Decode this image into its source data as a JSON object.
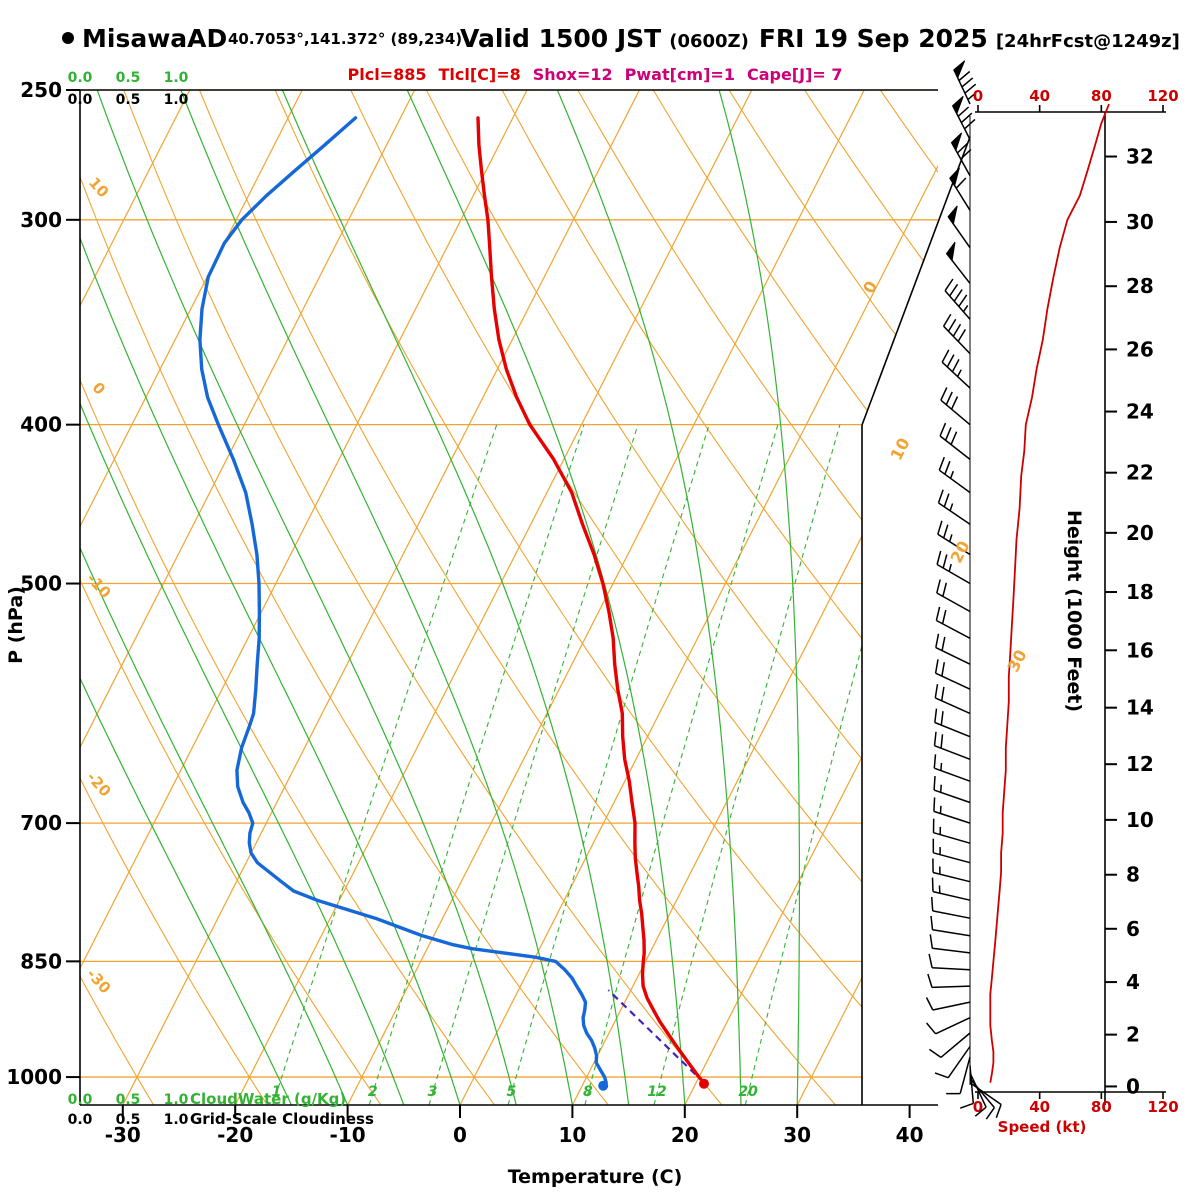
{
  "header": {
    "station": "MisawaAD",
    "coords": "40.7053°,141.372° (89,234)",
    "valid_label": "Valid 1500 JST",
    "valid_zulu": "(0600Z)",
    "valid_date": "FRI 19 Sep 2025",
    "fcst_tag": "[24hrFcst@1249z]",
    "params": [
      {
        "text": "Plcl=885",
        "color": "#dd0000"
      },
      {
        "text": "Tlcl[C]=8",
        "color": "#dd0000"
      },
      {
        "text": "Shox=12",
        "color": "#cc0077"
      },
      {
        "text": "Pwat[cm]=1",
        "color": "#cc0077"
      },
      {
        "text": "Cape[J]= 7",
        "color": "#cc0077"
      }
    ]
  },
  "axes": {
    "pressure_label": "P (hPa)",
    "pressure_ticks": [
      250,
      300,
      400,
      500,
      700,
      850,
      1000
    ],
    "temperature_label": "Temperature (C)",
    "temperature_ticks": [
      -30,
      -20,
      -10,
      0,
      10,
      20,
      30,
      40
    ],
    "height_label": "Height (1000 Feet)",
    "height_ticks": [
      0,
      2,
      4,
      6,
      8,
      10,
      12,
      14,
      16,
      18,
      20,
      22,
      24,
      26,
      28,
      30,
      32
    ],
    "speed_label": "Speed (kt)",
    "speed_ticks": [
      0,
      40,
      80,
      120
    ],
    "isotherm_right_labels": [
      0,
      10,
      20,
      30
    ],
    "dry_adiabat_left_labels": [
      10,
      0,
      -10,
      -20,
      -30
    ],
    "mixing_ratio_labels": [
      1,
      2,
      3,
      5,
      8,
      12,
      20
    ],
    "cloud_scale": [
      "0.0",
      "0.5",
      "1.0"
    ]
  },
  "legend": {
    "cloudwater": "CloudWater (g/Kg)",
    "cloudiness": "Grid-Scale Cloudiness"
  },
  "colors": {
    "grid_orange": "#f0a432",
    "grid_green": "#33b333",
    "temperature": "#e60000",
    "dewpoint": "#1668d8",
    "parcel": "#4422bb",
    "wind": "#000000",
    "speed_curve": "#cc0000",
    "speed_axis": "#cc0000",
    "frame": "#000000"
  },
  "chart_data": {
    "type": "skewt_logp_sounding",
    "pressure_axis_range": [
      250,
      1040
    ],
    "temperature_axis_range": [
      -30,
      40
    ],
    "isotherm_interval": 10,
    "dry_adiabat_interval": 10,
    "moist_adiabat_surface_temps": [
      -15,
      -10,
      -5,
      0,
      5,
      10,
      15,
      20,
      25,
      30
    ],
    "mixing_ratio_lines_gkg": [
      1,
      2,
      3,
      5,
      8,
      12,
      20
    ],
    "temperature_profile": [
      [
        1008,
        20.7
      ],
      [
        1000,
        20.0
      ],
      [
        985,
        18.8
      ],
      [
        970,
        17.6
      ],
      [
        955,
        16.4
      ],
      [
        940,
        15.2
      ],
      [
        925,
        14.0
      ],
      [
        910,
        12.9
      ],
      [
        895,
        11.8
      ],
      [
        880,
        10.9
      ],
      [
        865,
        10.3
      ],
      [
        850,
        9.8
      ],
      [
        840,
        9.5
      ],
      [
        825,
        8.9
      ],
      [
        810,
        8.2
      ],
      [
        795,
        7.5
      ],
      [
        780,
        6.7
      ],
      [
        765,
        6.0
      ],
      [
        750,
        5.2
      ],
      [
        735,
        4.4
      ],
      [
        720,
        3.7
      ],
      [
        700,
        2.8
      ],
      [
        680,
        1.6
      ],
      [
        660,
        0.4
      ],
      [
        640,
        -1.0
      ],
      [
        620,
        -2.2
      ],
      [
        600,
        -3.3
      ],
      [
        580,
        -4.8
      ],
      [
        560,
        -6.2
      ],
      [
        540,
        -7.5
      ],
      [
        520,
        -9.1
      ],
      [
        500,
        -10.9
      ],
      [
        480,
        -13.0
      ],
      [
        460,
        -15.4
      ],
      [
        440,
        -17.8
      ],
      [
        420,
        -20.9
      ],
      [
        400,
        -24.6
      ],
      [
        385,
        -27.0
      ],
      [
        370,
        -29.2
      ],
      [
        355,
        -31.2
      ],
      [
        340,
        -33.0
      ],
      [
        325,
        -34.7
      ],
      [
        310,
        -36.4
      ],
      [
        300,
        -37.6
      ],
      [
        290,
        -39.0
      ],
      [
        280,
        -40.4
      ],
      [
        270,
        -41.8
      ],
      [
        260,
        -43.1
      ]
    ],
    "dewpoint_profile": [
      [
        1008,
        12.0
      ],
      [
        1000,
        11.6
      ],
      [
        990,
        10.9
      ],
      [
        980,
        10.2
      ],
      [
        970,
        9.9
      ],
      [
        960,
        9.4
      ],
      [
        950,
        8.8
      ],
      [
        940,
        8.0
      ],
      [
        930,
        7.4
      ],
      [
        920,
        7.0
      ],
      [
        910,
        6.8
      ],
      [
        900,
        6.5
      ],
      [
        890,
        5.8
      ],
      [
        880,
        5.0
      ],
      [
        870,
        4.2
      ],
      [
        860,
        3.2
      ],
      [
        850,
        2.0
      ],
      [
        845,
        0.0
      ],
      [
        840,
        -3.0
      ],
      [
        835,
        -6.0
      ],
      [
        830,
        -8.0
      ],
      [
        820,
        -11.0
      ],
      [
        810,
        -13.5
      ],
      [
        800,
        -16.0
      ],
      [
        790,
        -19.0
      ],
      [
        780,
        -22.0
      ],
      [
        770,
        -24.5
      ],
      [
        760,
        -26.0
      ],
      [
        750,
        -27.5
      ],
      [
        740,
        -29.0
      ],
      [
        730,
        -30.0
      ],
      [
        720,
        -30.6
      ],
      [
        710,
        -31.0
      ],
      [
        700,
        -31.2
      ],
      [
        690,
        -32.0
      ],
      [
        680,
        -33.0
      ],
      [
        665,
        -34.2
      ],
      [
        650,
        -35.0
      ],
      [
        630,
        -35.6
      ],
      [
        610,
        -35.9
      ],
      [
        600,
        -36.1
      ],
      [
        580,
        -37.0
      ],
      [
        560,
        -38.0
      ],
      [
        540,
        -39.0
      ],
      [
        520,
        -40.2
      ],
      [
        500,
        -41.5
      ],
      [
        480,
        -43.0
      ],
      [
        460,
        -44.8
      ],
      [
        440,
        -46.8
      ],
      [
        420,
        -49.4
      ],
      [
        400,
        -52.3
      ],
      [
        385,
        -54.5
      ],
      [
        370,
        -56.3
      ],
      [
        355,
        -57.8
      ],
      [
        340,
        -59.0
      ],
      [
        325,
        -59.9
      ],
      [
        310,
        -60.0
      ],
      [
        300,
        -59.5
      ],
      [
        290,
        -58.4
      ],
      [
        280,
        -57.0
      ],
      [
        270,
        -55.5
      ],
      [
        260,
        -54.0
      ]
    ],
    "parcel_path": [
      [
        1008,
        20.7
      ],
      [
        885,
        8.0
      ]
    ],
    "surface_temperature_point": [
      1008,
      20.7
    ],
    "surface_dewpoint_point": [
      1008,
      12.0
    ],
    "wind_barbs": [
      [
        255,
        85,
        335
      ],
      [
        268,
        78,
        333
      ],
      [
        282,
        70,
        331
      ],
      [
        296,
        60,
        328
      ],
      [
        312,
        52,
        325
      ],
      [
        328,
        48,
        322
      ],
      [
        345,
        44,
        319
      ],
      [
        362,
        40,
        316
      ],
      [
        380,
        35,
        313
      ],
      [
        400,
        31,
        310
      ],
      [
        420,
        29,
        308
      ],
      [
        440,
        27,
        306
      ],
      [
        460,
        26,
        304
      ],
      [
        480,
        24,
        302
      ],
      [
        500,
        23,
        300
      ],
      [
        520,
        22,
        299
      ],
      [
        540,
        21,
        298
      ],
      [
        560,
        20,
        296
      ],
      [
        580,
        20,
        295
      ],
      [
        600,
        19,
        294
      ],
      [
        620,
        18,
        292
      ],
      [
        640,
        18,
        291
      ],
      [
        660,
        17,
        290
      ],
      [
        680,
        16,
        289
      ],
      [
        700,
        16,
        288
      ],
      [
        720,
        15,
        286
      ],
      [
        740,
        15,
        285
      ],
      [
        760,
        14,
        284
      ],
      [
        780,
        13,
        283
      ],
      [
        800,
        12,
        281
      ],
      [
        820,
        11,
        279
      ],
      [
        840,
        10,
        277
      ],
      [
        860,
        10,
        273
      ],
      [
        880,
        9,
        268
      ],
      [
        900,
        8,
        258
      ],
      [
        920,
        8,
        245
      ],
      [
        940,
        9,
        230
      ],
      [
        958,
        10,
        215
      ],
      [
        972,
        11,
        195
      ],
      [
        984,
        12,
        175
      ],
      [
        994,
        12,
        155
      ],
      [
        1002,
        12,
        140
      ],
      [
        1008,
        10,
        125
      ]
    ],
    "wind_speed_profile": [
      [
        255,
        85
      ],
      [
        262,
        80
      ],
      [
        270,
        76
      ],
      [
        280,
        71
      ],
      [
        290,
        66
      ],
      [
        300,
        58
      ],
      [
        312,
        53
      ],
      [
        325,
        49
      ],
      [
        340,
        45
      ],
      [
        355,
        42
      ],
      [
        370,
        38
      ],
      [
        385,
        35
      ],
      [
        400,
        31
      ],
      [
        415,
        30
      ],
      [
        430,
        28
      ],
      [
        450,
        27
      ],
      [
        470,
        25
      ],
      [
        490,
        24
      ],
      [
        510,
        23
      ],
      [
        530,
        22
      ],
      [
        550,
        21
      ],
      [
        570,
        20
      ],
      [
        590,
        20
      ],
      [
        610,
        19
      ],
      [
        630,
        18
      ],
      [
        650,
        18
      ],
      [
        670,
        17
      ],
      [
        690,
        16
      ],
      [
        710,
        16
      ],
      [
        730,
        15
      ],
      [
        750,
        15
      ],
      [
        770,
        14
      ],
      [
        790,
        13
      ],
      [
        810,
        12
      ],
      [
        830,
        11
      ],
      [
        850,
        10
      ],
      [
        870,
        9
      ],
      [
        890,
        8
      ],
      [
        910,
        8
      ],
      [
        930,
        8
      ],
      [
        950,
        9
      ],
      [
        965,
        10
      ],
      [
        980,
        10
      ],
      [
        995,
        9
      ],
      [
        1008,
        8
      ]
    ]
  }
}
